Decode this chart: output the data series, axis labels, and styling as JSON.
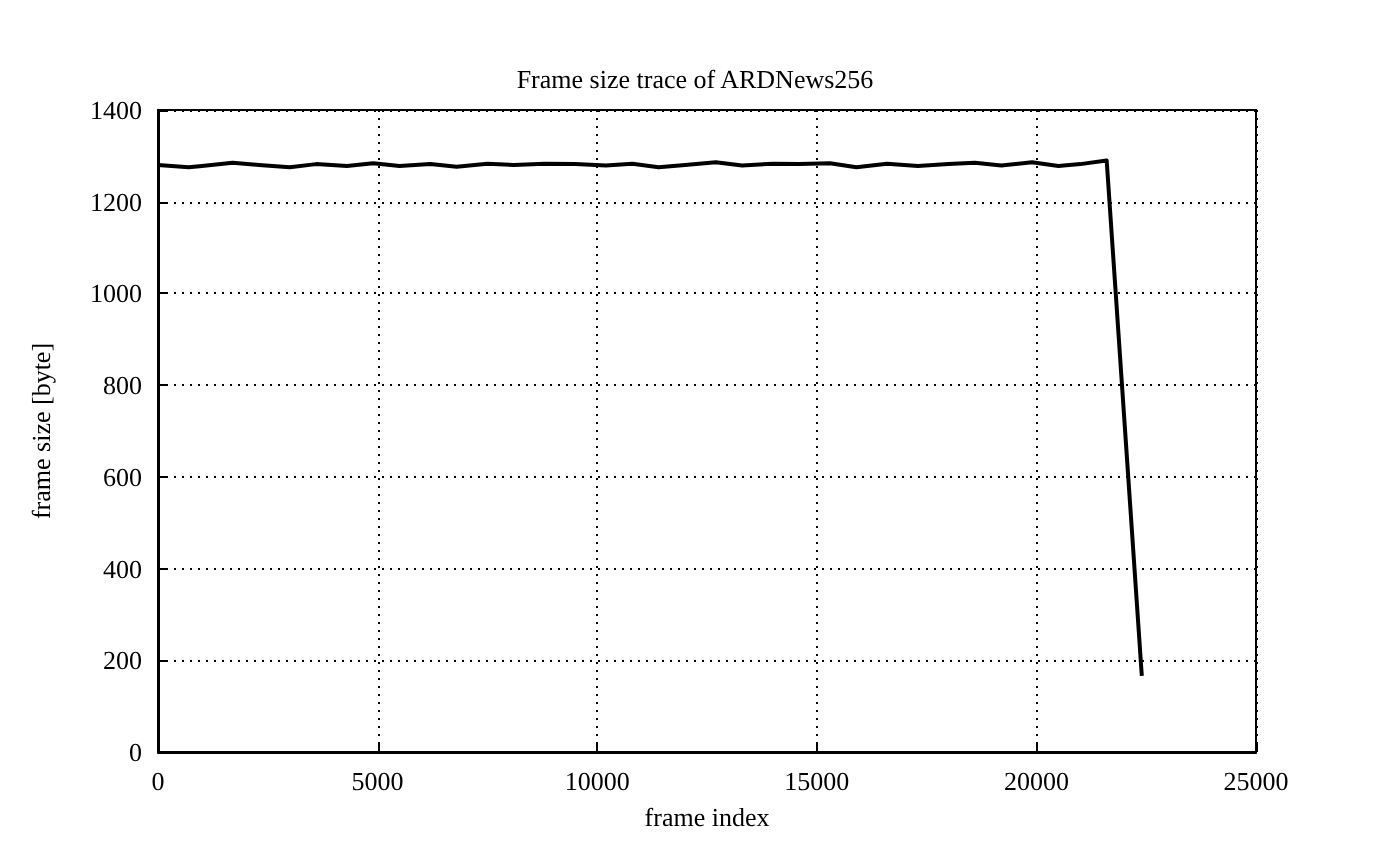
{
  "chart_data": {
    "type": "line",
    "title": "Frame size trace of ARDNews256",
    "xlabel": "frame index",
    "ylabel": "frame size [byte]",
    "series": [
      {
        "color": "#000000",
        "x": [
          0,
          700,
          1000,
          1700,
          2300,
          3000,
          3600,
          4300,
          4900,
          5500,
          6200,
          6800,
          7500,
          8100,
          8800,
          9500,
          10200,
          10800,
          11400,
          12000,
          12700,
          13300,
          14000,
          14600,
          15300,
          15900,
          16600,
          17300,
          18000,
          18600,
          19200,
          19900,
          20500,
          21000,
          21600,
          22400
        ],
        "values": [
          1280,
          1275,
          1278,
          1285,
          1280,
          1275,
          1282,
          1278,
          1284,
          1278,
          1282,
          1276,
          1283,
          1280,
          1283,
          1282,
          1279,
          1283,
          1275,
          1280,
          1286,
          1279,
          1283,
          1282,
          1284,
          1275,
          1283,
          1278,
          1282,
          1285,
          1279,
          1286,
          1278,
          1282,
          1290,
          166
        ]
      }
    ],
    "xlim": [
      0,
      25000
    ],
    "xticks": [
      0,
      5000,
      10000,
      15000,
      20000,
      25000
    ],
    "ylim": [
      0,
      1400
    ],
    "yticks": [
      0,
      200,
      400,
      600,
      800,
      1000,
      1200,
      1400
    ],
    "grid": true,
    "marker": "none",
    "line_style": "solid"
  }
}
